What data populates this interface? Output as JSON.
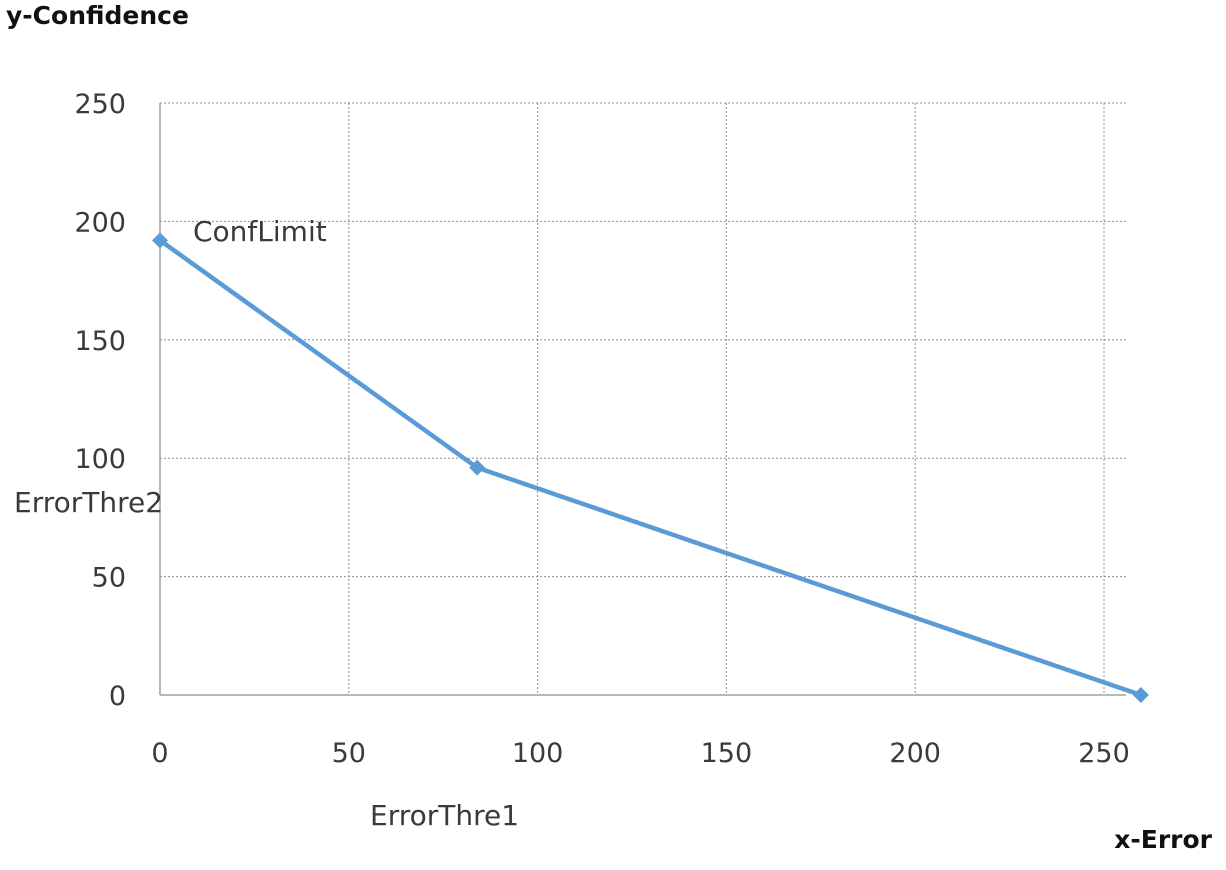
{
  "chart_data": {
    "type": "line",
    "title": "",
    "xlabel": "x-Error",
    "ylabel": "y-Confidence",
    "xlim": [
      0,
      255
    ],
    "ylim": [
      0,
      250
    ],
    "x_ticks": [
      0,
      50,
      100,
      150,
      200,
      250
    ],
    "y_ticks": [
      0,
      50,
      100,
      150,
      200,
      250
    ],
    "x_tick_labels": [
      "0",
      "50",
      "100",
      "150",
      "200",
      "250"
    ],
    "y_tick_labels": [
      "0",
      "50",
      "100",
      "150",
      "200",
      "250"
    ],
    "grid": true,
    "series": [
      {
        "x": [
          0,
          84,
          255
        ],
        "y": [
          192,
          96,
          0
        ],
        "color": "#5b9bd5",
        "marker": "diamond"
      }
    ],
    "annotations": [
      {
        "text": "ConfLimit"
      },
      {
        "text": "ErrorThre2"
      },
      {
        "text": "ErrorThre1"
      }
    ]
  }
}
